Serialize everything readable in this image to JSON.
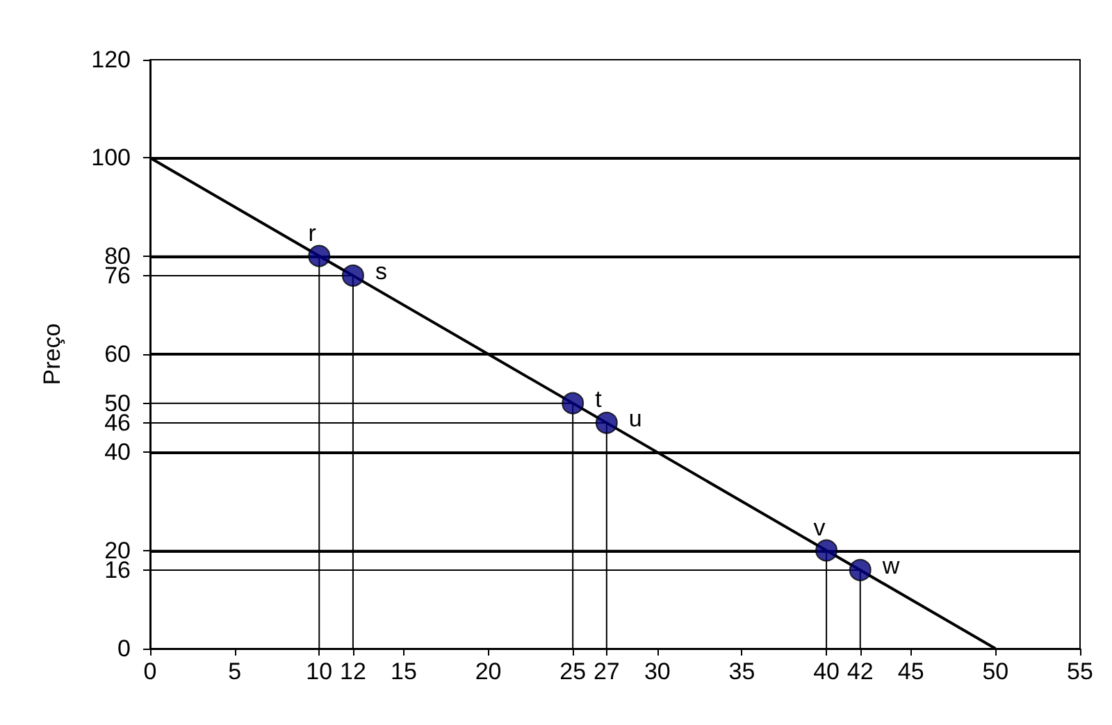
{
  "chart_data": {
    "type": "line",
    "ylabel": "Preço",
    "xlim": [
      0,
      55
    ],
    "xticks": [
      0,
      5,
      10,
      12,
      15,
      20,
      25,
      27,
      30,
      35,
      40,
      42,
      45,
      50,
      55
    ],
    "ylim": [
      0,
      120
    ],
    "yticks": [
      0,
      16,
      20,
      40,
      46,
      50,
      60,
      76,
      80,
      100,
      120
    ],
    "ref_lines": [
      {
        "axis": "y",
        "value": 20
      },
      {
        "axis": "y",
        "value": 40
      },
      {
        "axis": "y",
        "value": 60
      },
      {
        "axis": "y",
        "value": 80
      },
      {
        "axis": "y",
        "value": 100
      }
    ],
    "marker": "none",
    "line_style": "solid",
    "series": [
      {
        "color": "#000000",
        "x": [
          0,
          50
        ],
        "values": [
          100,
          0
        ]
      },
      {
        "color": "#000000",
        "x": [
          0,
          10,
          10
        ],
        "values": [
          80,
          80,
          0
        ]
      },
      {
        "color": "#000000",
        "x": [
          0,
          12,
          12
        ],
        "values": [
          76,
          76,
          0
        ]
      },
      {
        "color": "#000000",
        "x": [
          0,
          25,
          25
        ],
        "values": [
          50,
          50,
          0
        ]
      },
      {
        "color": "#000000",
        "x": [
          0,
          27,
          27
        ],
        "values": [
          46,
          46,
          0
        ]
      },
      {
        "color": "#000000",
        "x": [
          0,
          40,
          40
        ],
        "values": [
          20,
          20,
          0
        ]
      },
      {
        "color": "#000000",
        "x": [
          0,
          42,
          42
        ],
        "values": [
          16,
          16,
          0
        ]
      },
      {
        "type": "scatter",
        "marker": "circle",
        "color": "#000080",
        "x": [
          10,
          12,
          25,
          27,
          40,
          42
        ],
        "values": [
          80,
          76,
          50,
          46,
          20,
          16
        ]
      }
    ],
    "annotations": [
      {
        "text": "r",
        "x": 10,
        "y": 80
      },
      {
        "text": "s",
        "x": 12,
        "y": 76
      },
      {
        "text": "t",
        "x": 25,
        "y": 50
      },
      {
        "text": "u",
        "x": 27,
        "y": 46
      },
      {
        "text": "v",
        "x": 40,
        "y": 20
      },
      {
        "text": "w",
        "x": 42,
        "y": 16
      }
    ]
  }
}
